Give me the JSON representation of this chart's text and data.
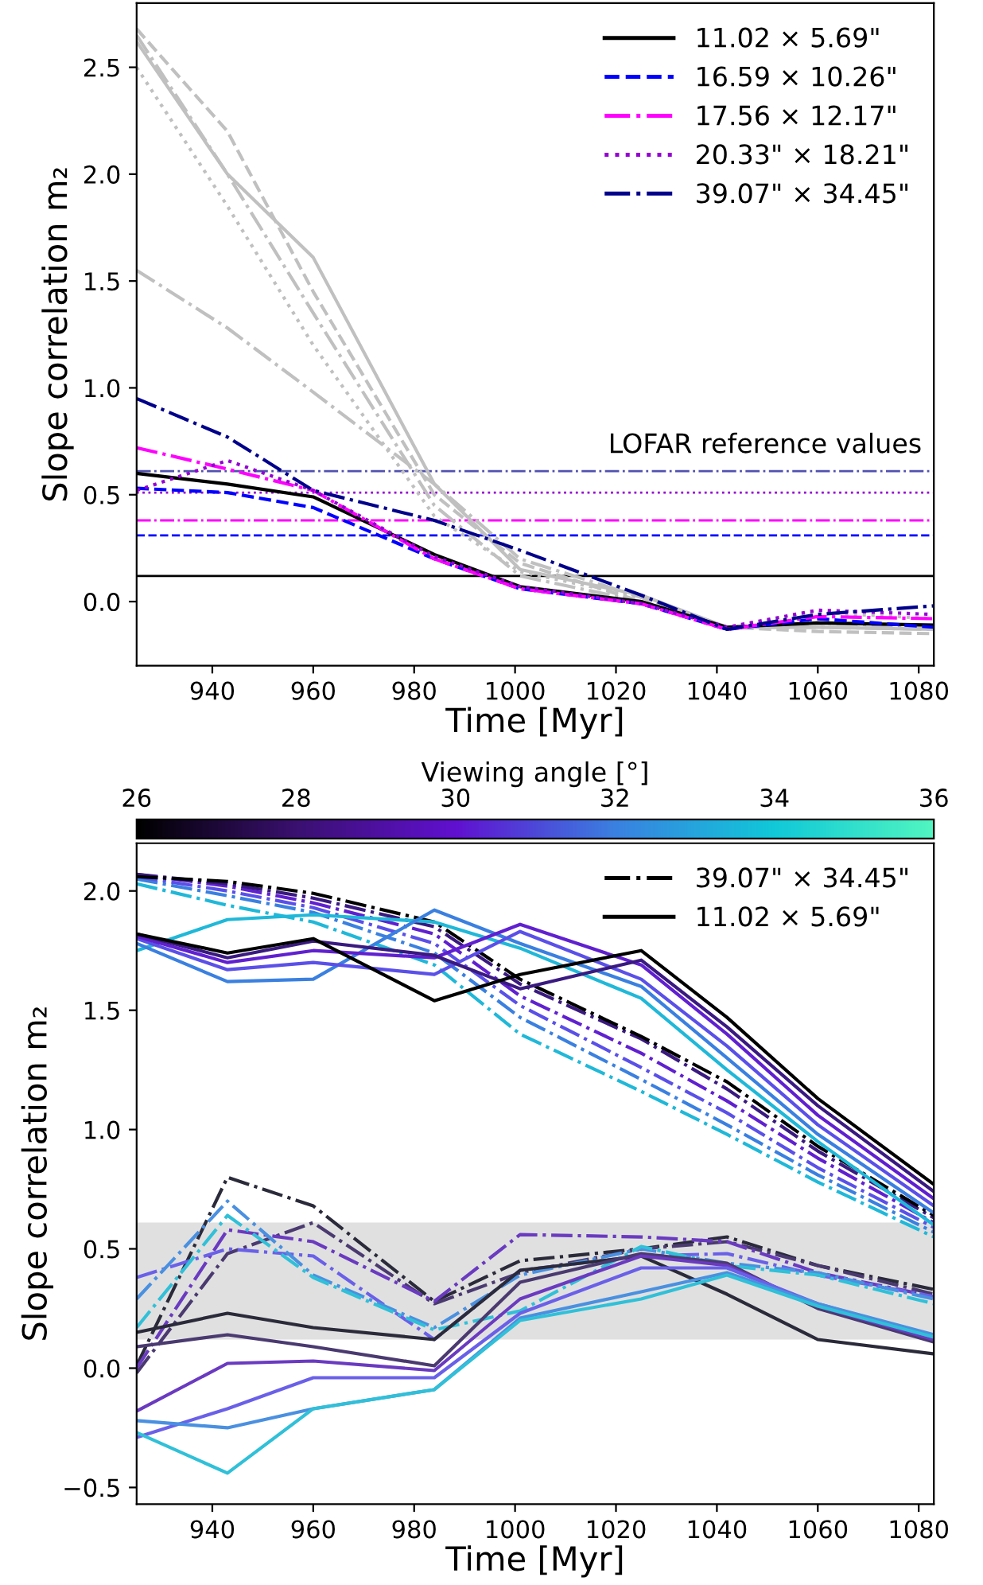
{
  "chart_data": [
    {
      "type": "line",
      "xlabel": "Time [Myr]",
      "ylabel": "Slope correlation m₂",
      "x": [
        925,
        943,
        960,
        984,
        1001,
        1025,
        1042,
        1060,
        1083
      ],
      "xlim": [
        925,
        1083
      ],
      "xticks": [
        940,
        960,
        980,
        1000,
        1020,
        1040,
        1060,
        1080
      ],
      "ylim": [
        -0.3,
        2.8
      ],
      "yticks": [
        {
          "value": 0,
          "label": "0.0"
        },
        0.5,
        {
          "value": 1,
          "label": "1.0"
        },
        1.5,
        {
          "value": 2,
          "label": "2.0"
        },
        2.5
      ],
      "legend": "top right",
      "grid": false,
      "annotations": [
        "LOFAR reference values"
      ],
      "ref_lines": [
        {
          "axis": "y",
          "value": 0.12,
          "color": "#000000",
          "line_style": "solid"
        },
        {
          "axis": "y",
          "value": 0.31,
          "color": "#0000ff",
          "line_style": "dashed"
        },
        {
          "axis": "y",
          "value": 0.38,
          "color": "#ff00ff",
          "line_style": "dashdot"
        },
        {
          "axis": "y",
          "value": 0.51,
          "color": "#9400d3",
          "line_style": "dotted"
        },
        {
          "axis": "y",
          "value": 0.61,
          "color": "#5050b0",
          "line_style": "dashdot"
        }
      ],
      "series": [
        {
          "color": "#c0c0c0",
          "line_style": "solid",
          "values": [
            2.62,
            2.0,
            1.61,
            0.55,
            0.15,
            0.03,
            -0.12,
            -0.12,
            -0.13
          ]
        },
        {
          "color": "#c0c0c0",
          "line_style": "dashed",
          "values": [
            2.68,
            2.2,
            1.45,
            0.5,
            0.18,
            0.0,
            -0.12,
            -0.14,
            -0.15
          ]
        },
        {
          "color": "#c0c0c0",
          "line_style": "dashdot",
          "values": [
            2.65,
            2.0,
            1.35,
            0.45,
            0.12,
            0.0,
            -0.12,
            -0.12,
            -0.13
          ]
        },
        {
          "color": "#c0c0c0",
          "line_style": "dotted",
          "values": [
            2.5,
            1.85,
            1.2,
            0.4,
            0.14,
            0.02,
            -0.12,
            -0.05,
            -0.08
          ]
        },
        {
          "color": "#c0c0c0",
          "line_style": "dashdot",
          "values": [
            1.55,
            1.28,
            0.98,
            0.55,
            0.2,
            0.02,
            -0.12,
            -0.1,
            -0.12
          ]
        },
        {
          "name": "11.02 × 5.69\"",
          "color": "#000000",
          "line_style": "solid",
          "values": [
            0.6,
            0.55,
            0.49,
            0.22,
            0.07,
            0.0,
            -0.12,
            -0.1,
            -0.11
          ]
        },
        {
          "name": "16.59 × 10.26\"",
          "color": "#0000ff",
          "line_style": "dashed",
          "values": [
            0.53,
            0.51,
            0.44,
            0.2,
            0.06,
            -0.01,
            -0.13,
            -0.08,
            -0.12
          ]
        },
        {
          "name": "17.56 × 12.17\"",
          "color": "#ff00ff",
          "line_style": "dashdot",
          "values": [
            0.72,
            0.62,
            0.52,
            0.2,
            0.06,
            -0.01,
            -0.13,
            -0.07,
            -0.08
          ]
        },
        {
          "name": "20.33\" × 18.21\"",
          "color": "#9400d3",
          "line_style": "dotted",
          "values": [
            0.52,
            0.66,
            0.52,
            0.21,
            0.07,
            -0.01,
            -0.12,
            -0.04,
            -0.06
          ]
        },
        {
          "name": "39.07\" × 34.45\"",
          "color": "#00008b",
          "line_style": "dashdot",
          "values": [
            0.95,
            0.77,
            0.52,
            0.38,
            0.24,
            0.03,
            -0.13,
            -0.06,
            -0.02
          ]
        }
      ]
    },
    {
      "type": "line",
      "xlabel": "Time [Myr]",
      "ylabel": "Slope correlation m₂",
      "x": [
        925,
        943,
        960,
        984,
        1001,
        1025,
        1042,
        1060,
        1083
      ],
      "xlim": [
        925,
        1083
      ],
      "xticks": [
        940,
        960,
        980,
        1000,
        1020,
        1040,
        1060,
        1080
      ],
      "ylim": [
        -0.57,
        2.2
      ],
      "yticks": [
        -0.5,
        {
          "value": 0,
          "label": "0.0"
        },
        0.5,
        {
          "value": 1,
          "label": "1.0"
        },
        1.5,
        {
          "value": 2,
          "label": "2.0"
        }
      ],
      "legend": "top right",
      "grid": false,
      "clabel": "Viewing angle [°]",
      "clim": [
        26,
        36
      ],
      "cticks": [
        26,
        28,
        30,
        32,
        34,
        36
      ],
      "bands": [
        {
          "axis": "y",
          "from": 0.12,
          "to": 0.61,
          "color": "#e0e0e0"
        }
      ],
      "series": [
        {
          "color": "#2a2a3a",
          "line_style": "dashdot",
          "values": [
            0.01,
            0.8,
            0.68,
            0.28,
            0.45,
            0.5,
            0.55,
            0.43,
            0.33
          ]
        },
        {
          "color": "#4a3a70",
          "line_style": "dashdot",
          "values": [
            -0.02,
            0.48,
            0.61,
            0.27,
            0.4,
            0.5,
            0.53,
            0.43,
            0.31
          ]
        },
        {
          "color": "#6a3ac0",
          "line_style": "dashdot",
          "values": [
            0.0,
            0.58,
            0.53,
            0.28,
            0.56,
            0.55,
            0.53,
            0.4,
            0.3
          ]
        },
        {
          "color": "#6a60e8",
          "line_style": "dashdot",
          "values": [
            0.38,
            0.5,
            0.47,
            0.12,
            0.41,
            0.47,
            0.48,
            0.39,
            0.3
          ]
        },
        {
          "color": "#4a90e0",
          "line_style": "dashdot",
          "values": [
            0.29,
            0.7,
            0.39,
            0.17,
            0.39,
            0.5,
            0.44,
            0.4,
            0.29
          ]
        },
        {
          "color": "#30c0d8",
          "line_style": "dashdot",
          "values": [
            0.17,
            0.64,
            0.38,
            0.16,
            0.24,
            0.51,
            0.43,
            0.39,
            0.27
          ]
        },
        {
          "color": "#2a2a3a",
          "line_style": "solid",
          "values": [
            0.15,
            0.23,
            0.17,
            0.12,
            0.41,
            0.47,
            0.31,
            0.12,
            0.06
          ]
        },
        {
          "color": "#4a3a70",
          "line_style": "solid",
          "values": [
            0.09,
            0.14,
            0.09,
            0.01,
            0.36,
            0.48,
            0.44,
            0.25,
            0.11
          ]
        },
        {
          "color": "#6a3ac0",
          "line_style": "solid",
          "values": [
            -0.18,
            0.02,
            0.03,
            -0.01,
            0.29,
            0.47,
            0.43,
            0.26,
            0.12
          ]
        },
        {
          "color": "#6a60e8",
          "line_style": "solid",
          "values": [
            -0.29,
            -0.17,
            -0.04,
            -0.04,
            0.23,
            0.42,
            0.42,
            0.27,
            0.13
          ]
        },
        {
          "color": "#4a90e0",
          "line_style": "solid",
          "values": [
            -0.22,
            -0.25,
            -0.17,
            -0.09,
            0.21,
            0.32,
            0.4,
            0.27,
            0.14
          ]
        },
        {
          "color": "#30c0d8",
          "line_style": "solid",
          "values": [
            -0.27,
            -0.44,
            -0.17,
            -0.09,
            0.2,
            0.29,
            0.39,
            0.26,
            0.13
          ]
        },
        {
          "color": "#20b8d8",
          "line_style": "dashdot",
          "values": [
            2.03,
            1.94,
            1.87,
            1.69,
            1.4,
            1.16,
            0.98,
            0.78,
            0.55
          ]
        },
        {
          "color": "#3a80e0",
          "line_style": "dashdot",
          "values": [
            2.05,
            1.98,
            1.91,
            1.74,
            1.47,
            1.21,
            1.02,
            0.81,
            0.57
          ]
        },
        {
          "color": "#5a50e8",
          "line_style": "dashdot",
          "values": [
            2.06,
            2.0,
            1.93,
            1.78,
            1.52,
            1.26,
            1.07,
            0.84,
            0.59
          ]
        },
        {
          "color": "#6020d0",
          "line_style": "dashdot",
          "values": [
            2.07,
            2.02,
            1.95,
            1.82,
            1.56,
            1.32,
            1.12,
            0.88,
            0.61
          ]
        },
        {
          "color": "#3a1a80",
          "line_style": "dashdot",
          "values": [
            2.07,
            2.03,
            1.97,
            1.85,
            1.61,
            1.38,
            1.17,
            0.91,
            0.63
          ]
        },
        {
          "name": "39.07\" × 34.45\"",
          "color": "#000000",
          "line_style": "dashdot",
          "values": [
            2.06,
            2.04,
            1.99,
            1.87,
            1.63,
            1.39,
            1.2,
            0.93,
            0.64
          ]
        },
        {
          "color": "#20b8d8",
          "line_style": "solid",
          "values": [
            1.75,
            1.88,
            1.9,
            1.87,
            1.76,
            1.55,
            1.25,
            0.95,
            0.6
          ]
        },
        {
          "color": "#3a80e0",
          "line_style": "solid",
          "values": [
            1.78,
            1.62,
            1.63,
            1.92,
            1.78,
            1.6,
            1.3,
            0.98,
            0.65
          ]
        },
        {
          "color": "#5a50e8",
          "line_style": "solid",
          "values": [
            1.8,
            1.67,
            1.7,
            1.65,
            1.83,
            1.63,
            1.35,
            1.02,
            0.68
          ]
        },
        {
          "color": "#6020d0",
          "line_style": "solid",
          "values": [
            1.81,
            1.7,
            1.75,
            1.72,
            1.86,
            1.69,
            1.4,
            1.06,
            0.71
          ]
        },
        {
          "color": "#3a1a80",
          "line_style": "solid",
          "values": [
            1.82,
            1.72,
            1.79,
            1.73,
            1.59,
            1.71,
            1.43,
            1.1,
            0.74
          ]
        },
        {
          "name": "11.02 × 5.69\"",
          "color": "#000000",
          "line_style": "solid",
          "values": [
            1.82,
            1.74,
            1.8,
            1.54,
            1.65,
            1.75,
            1.47,
            1.13,
            0.77
          ]
        }
      ]
    }
  ]
}
